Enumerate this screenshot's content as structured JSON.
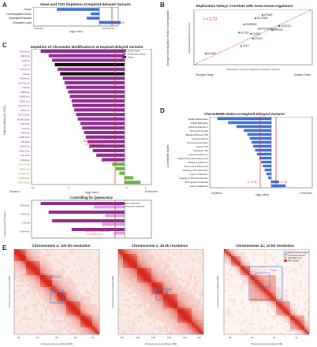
{
  "panels": {
    "A": {
      "label": "A",
      "title": "Gene and TAD Depletion at Haploid-delayed Variants",
      "rows": [
        "Genes",
        "Downregulated Genes",
        "Topological Domains",
        "Chromatin Loops"
      ],
      "annotation": "p = 0.05",
      "axis_left": "Depletion",
      "axis_right": "Enrichment",
      "xlabel": "-log(p-value)"
    },
    "B": {
      "label": "B",
      "title": "Replication Delays Correlate with Gene Down-regulation",
      "r_text": "r = 0.72",
      "y_top": "Weaker Downregulation",
      "y_bottom": "Stronger Downregulation",
      "ylabel": "log2(haploid/diploid expression)",
      "xlabel": "Replication Timing in Haploid Compared to Diploid",
      "x_left": "Stronger Delay",
      "x_right": "Weaker Delay",
      "genes": [
        "CPNE5",
        "SLC16A9",
        "KHDRBS2",
        "SORCS1",
        "RP5-965K13.2",
        "ATP10D",
        "KCTD8",
        "CNTN4",
        "CDH10",
        "CHL1",
        "NCAM2"
      ]
    },
    "C": {
      "label": "C",
      "title": "Depletion of Chromatin Modifications at Haploid-delayed Variants",
      "legend": [
        "Active Mark",
        "Repressive Mark",
        "Other"
      ],
      "ylabel": "Histone Marks (H1-ESC)",
      "marks": [
        "H3K4me3",
        "H3K27ac",
        "H3K9ac",
        "H2A.Z",
        "H3K4me2",
        "DNase",
        "H2K4me1",
        "H3K79me2",
        "H4K8ac",
        "H2BK5ac",
        "H3K9me1",
        "H3K4me1",
        "H3K36me3",
        "H3K27ac",
        "H3K23me2",
        "H2BK120ac",
        "H3K23ac",
        "H3K4ac",
        "H3K56ac",
        "H2BK15ac",
        "H3K18ac",
        "H2AK5ac",
        "H2BK12ac",
        "H3K14ac",
        "H4K91ac",
        "H3K27me3",
        "H3K9me3",
        "H4K20me1",
        "H2BK20ac",
        "H3K79me1"
      ],
      "threshold_text": "Bonferroni Threshold",
      "threshold_p": "(p = 1.66 x 10⁻⁴)",
      "axis_left": "Depletion",
      "axis_right": "Enrichment",
      "xlabel": "-log(p-value)",
      "ticks": [
        "10",
        "5",
        "0",
        "2"
      ],
      "sub_title": "Controlling for Quiescence",
      "sub_legend": [
        "Timing-matched",
        "Quiescence-matched"
      ],
      "sub_marks": [
        "H3K4me3",
        "H3K27ac",
        "H3K9ac",
        "H3K4me1"
      ],
      "sub_ylabel": "Histone Marks (H1-ESC)",
      "sub_threshold_text": "Bonferroni Threshold",
      "sub_threshold_p": "(p = 1.66 x 10⁻⁴)"
    },
    "D": {
      "label": "D",
      "title": "ChromHMM States at Haploid-delayed Variants",
      "ylabel": "ChromHMM States",
      "states": [
        "Weak transcription",
        "Weak Enhancer",
        "Active Enhancer 1",
        "Heterochromatin",
        "Bivalent/Poised TSS",
        "Quiescent/Low",
        "Strong transcription",
        "Active TSS",
        "Flanking TSS",
        "Active Enhancer 2",
        "Weak Repressed PolyComb",
        "Bivalent Enhancer",
        "Repressed PolyComb",
        "Flanking TSS Upstream",
        "Genic enhancer1",
        "Flanking TSS Downstream",
        "ZNF genes & repeats",
        "Genic enhancer2"
      ],
      "p_left": "p = 0.05",
      "p_right": "p = 0.05",
      "axis_left": "Depletion",
      "axis_right": "Enrichment",
      "xlabel": "-log(p-value)"
    },
    "E": {
      "label": "E",
      "maps": [
        {
          "title": "Chromosome 4; 100 kb resolution",
          "ylabel": "Chromosomal coordinate (Mb)",
          "xlabel": "Chromosomal coordinate (Mb)",
          "annotations": [
            "BCL#11",
            "#7",
            "#8"
          ],
          "xticks": [
            "20",
            "25",
            "30",
            "35",
            "40"
          ]
        },
        {
          "title": "Chromosome 1; 25 kb resolution",
          "ylabel": "Chromosomal coordinate (Mb)",
          "xlabel": "Chromosomal coordinate (Mb)",
          "annotations": [
            "#2"
          ],
          "xticks": [
            "175",
            "180",
            "185",
            "190",
            "195",
            "200"
          ]
        },
        {
          "title": "Chromosome 11; 10 kb resolution",
          "ylabel": "Chromosomal coordinate (Mb)",
          "xlabel": "Chromosomal coordinate (Mb)",
          "annotations": [
            "#16"
          ],
          "legend": [
            "Haploid-delayed region",
            "Topological domain",
            "Chromatin loop",
            "Hi-C contact"
          ],
          "xticks": [
            "38",
            "40",
            "42",
            "44"
          ]
        }
      ]
    }
  },
  "chart_data": [
    {
      "type": "bar",
      "panel": "A",
      "categories": [
        "Genes",
        "Downregulated Genes",
        "Topological Domains",
        "Chromatin Loops"
      ],
      "values": [
        -3.0,
        -0.6,
        -0.9,
        1.5
      ],
      "xlabel": "-log(p-value)",
      "threshold": 1.3
    },
    {
      "type": "scatter",
      "panel": "B",
      "xlabel": "Replication Timing in Haploid Compared to Diploid",
      "ylabel": "log2(haploid/diploid expression)",
      "r": 0.72,
      "points": [
        {
          "label": "CPNE5",
          "x": 0.58,
          "y": 0.1
        },
        {
          "label": "SLC16A9",
          "x": 0.52,
          "y": 0.16
        },
        {
          "label": "KHDRBS2",
          "x": 0.42,
          "y": 0.27
        },
        {
          "label": "SORCS1",
          "x": 0.72,
          "y": 0.3
        },
        {
          "label": "RP5-965K13.2",
          "x": 0.55,
          "y": 0.35
        },
        {
          "label": "ATP10D",
          "x": 0.66,
          "y": 0.37
        },
        {
          "label": "KCTD8",
          "x": 0.38,
          "y": 0.42
        },
        {
          "label": "CNTN4",
          "x": 0.48,
          "y": 0.44
        },
        {
          "label": "CDH10",
          "x": 0.5,
          "y": 0.53
        },
        {
          "label": "CHL1",
          "x": 0.4,
          "y": 0.66
        },
        {
          "label": "NCAM2",
          "x": 0.1,
          "y": 0.8
        }
      ]
    },
    {
      "type": "bar",
      "panel": "C",
      "categories": [
        "H3K4me3",
        "H3K27ac",
        "H3K9ac",
        "H2A.Z",
        "H3K4me2",
        "DNase",
        "H2K4me1",
        "H3K79me2",
        "H4K8ac",
        "H2BK5ac",
        "H3K9me1",
        "H3K4me1",
        "H3K36me3",
        "H3K27ac",
        "H3K23me2",
        "H2BK120ac",
        "H3K23ac",
        "H3K4ac",
        "H3K56ac",
        "H2BK15ac",
        "H3K18ac",
        "H2AK5ac",
        "H2BK12ac",
        "H3K14ac",
        "H4K91ac",
        "H3K27me3",
        "H3K9me3",
        "H4K20me1",
        "H2BK20ac",
        "H3K79me1"
      ],
      "values": [
        -9.5,
        -8.6,
        -8.2,
        -7.9,
        -7.6,
        -7.3,
        -7.0,
        -6.8,
        -6.6,
        -6.4,
        -6.2,
        -6.0,
        -5.9,
        -5.7,
        -5.5,
        -5.3,
        -5.0,
        -4.8,
        -4.6,
        -4.4,
        -4.2,
        -4.0,
        -3.6,
        -3.2,
        -2.6,
        -1.4,
        -1.0,
        -0.6,
        1.0,
        1.8
      ],
      "classes": [
        "active",
        "active",
        "active",
        "other",
        "active",
        "other",
        "active",
        "active",
        "active",
        "active",
        "active",
        "active",
        "active",
        "active",
        "active",
        "active",
        "active",
        "active",
        "active",
        "active",
        "active",
        "active",
        "active",
        "active",
        "active",
        "repressive",
        "repressive",
        "repressive",
        "active",
        "repressive"
      ],
      "threshold": 3.78
    },
    {
      "type": "bar",
      "panel": "C-sub",
      "categories": [
        "H3K4me3",
        "H3K27ac",
        "H3K9ac",
        "H3K4me1"
      ],
      "series": [
        {
          "name": "Timing-matched",
          "values": [
            -9.5,
            -8.6,
            -8.2,
            -6.0
          ]
        },
        {
          "name": "Quiescence-matched",
          "values": [
            -3.5,
            -2.2,
            -2.6,
            -1.2
          ]
        }
      ]
    },
    {
      "type": "bar",
      "panel": "D",
      "categories": [
        "Weak transcription",
        "Weak Enhancer",
        "Active Enhancer 1",
        "Heterochromatin",
        "Bivalent/Poised TSS",
        "Quiescent/Low",
        "Strong transcription",
        "Active TSS",
        "Flanking TSS",
        "Active Enhancer 2",
        "Weak Repressed PolyComb",
        "Bivalent Enhancer",
        "Repressed PolyComb",
        "Flanking TSS Upstream",
        "Genic enhancer1",
        "Flanking TSS Downstream",
        "ZNF genes & repeats",
        "Genic enhancer2"
      ],
      "values": [
        -9.0,
        -7.2,
        -5.8,
        -4.6,
        -4.0,
        -3.6,
        -3.3,
        -3.0,
        -2.7,
        -2.4,
        -2.0,
        -1.7,
        -1.4,
        -1.1,
        -0.8,
        -0.5,
        1.3,
        2.4
      ],
      "threshold": 1.3
    }
  ],
  "colors": {
    "blue": "#3b6fd6",
    "red": "#d4322c",
    "active": "#8d2a8e",
    "repressive": "#d6a3dd",
    "other": "#111111",
    "green": "#6cb33f",
    "heat": "#d62a1e"
  }
}
